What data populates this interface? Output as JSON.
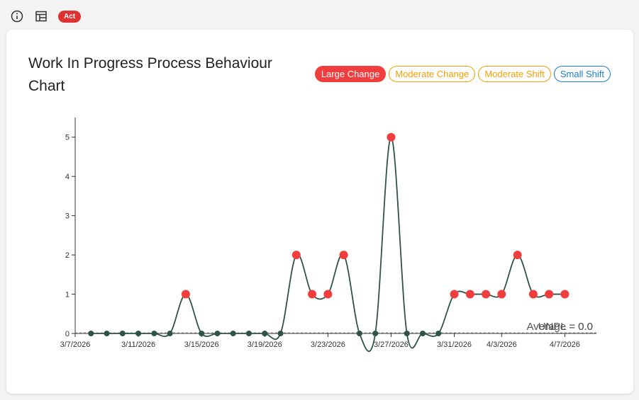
{
  "toolbar": {
    "badge": "Act"
  },
  "chart_data": {
    "type": "line",
    "title": "Work In Progress Process Behaviour Chart",
    "legend_items": [
      {
        "name": "Large Change",
        "color": "#f03e3e",
        "filled": true
      },
      {
        "name": "Moderate Change",
        "color": "#f59f00",
        "filled": false
      },
      {
        "name": "Moderate Shift",
        "color": "#f59f00",
        "filled": false
      },
      {
        "name": "Small Shift",
        "color": "#1c7ed6",
        "filled": false
      }
    ],
    "x": [
      "3/8/2026",
      "3/9/2026",
      "3/10/2026",
      "3/11/2026",
      "3/12/2026",
      "3/13/2026",
      "3/14/2026",
      "3/15/2026",
      "3/16/2026",
      "3/17/2026",
      "3/18/2026",
      "3/19/2026",
      "3/20/2026",
      "3/21/2026",
      "3/22/2026",
      "3/23/2026",
      "3/24/2026",
      "3/25/2026",
      "3/26/2026",
      "3/27/2026",
      "3/28/2026",
      "3/29/2026",
      "3/30/2026",
      "3/31/2026",
      "4/1/2026",
      "4/2/2026",
      "4/3/2026",
      "4/4/2026",
      "4/5/2026",
      "4/6/2026",
      "4/7/2026"
    ],
    "series": [
      {
        "color": "#2f5345",
        "values": [
          0,
          0,
          0,
          0,
          0,
          0,
          1,
          0,
          0,
          0,
          0,
          0,
          0,
          2,
          1,
          1,
          2,
          0,
          0,
          5,
          0,
          0,
          0,
          1,
          1,
          1,
          1,
          2,
          1,
          1,
          1
        ],
        "point_colors": [
          "#2f5345",
          "#2f5345",
          "#2f5345",
          "#2f5345",
          "#2f5345",
          "#2f5345",
          "#f03e3e",
          "#2f5345",
          "#2f5345",
          "#2f5345",
          "#2f5345",
          "#2f5345",
          "#2f5345",
          "#f03e3e",
          "#f03e3e",
          "#f03e3e",
          "#f03e3e",
          "#2f5345",
          "#2f5345",
          "#f03e3e",
          "#2f5345",
          "#2f5345",
          "#2f5345",
          "#f03e3e",
          "#f03e3e",
          "#f03e3e",
          "#f03e3e",
          "#f03e3e",
          "#f03e3e",
          "#f03e3e",
          "#f03e3e"
        ]
      }
    ],
    "xlim": [
      "3/7/2026",
      "4/9/2026"
    ],
    "xticks": [
      "3/7/2026",
      "3/11/2026",
      "3/15/2026",
      "3/19/2026",
      "3/23/2026",
      "3/27/2026",
      "3/31/2026",
      "4/3/2026",
      "4/7/2026"
    ],
    "ylim": [
      0,
      5.5
    ],
    "yticks": [
      0,
      1,
      2,
      3,
      4,
      5
    ],
    "annotations": [
      "Average = 0.0",
      "UNPL = 0.0"
    ]
  }
}
